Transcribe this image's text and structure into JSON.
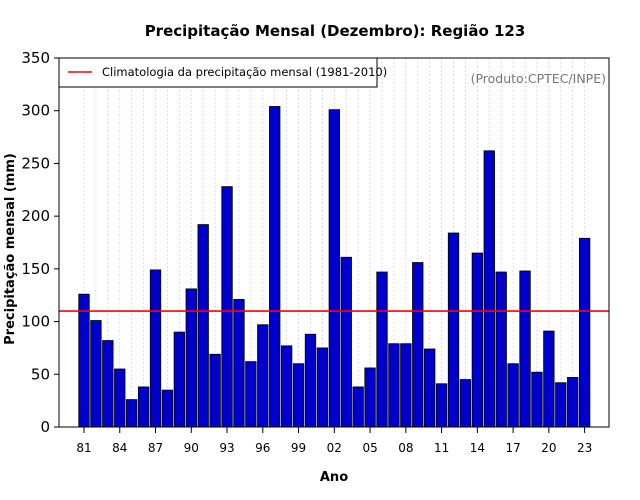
{
  "chart_data": {
    "type": "bar",
    "title": "Precipitação Mensal (Dezembro): Região 123",
    "xlabel": "Ano",
    "ylabel": "Precipitação mensal (mm)",
    "ylim": [
      0,
      350
    ],
    "yticks": [
      0,
      50,
      100,
      150,
      200,
      250,
      300,
      350
    ],
    "categories": [
      "81",
      "82",
      "83",
      "84",
      "85",
      "86",
      "87",
      "88",
      "89",
      "90",
      "91",
      "92",
      "93",
      "94",
      "95",
      "96",
      "97",
      "98",
      "99",
      "00",
      "01",
      "02",
      "03",
      "04",
      "05",
      "06",
      "07",
      "08",
      "09",
      "10",
      "11",
      "12",
      "13",
      "14",
      "15",
      "16",
      "17",
      "18",
      "19",
      "20",
      "21",
      "22",
      "23"
    ],
    "xtick_labels": [
      "81",
      "84",
      "87",
      "90",
      "93",
      "96",
      "99",
      "02",
      "05",
      "08",
      "11",
      "14",
      "17",
      "20",
      "23"
    ],
    "values": [
      126,
      101,
      82,
      55,
      26,
      38,
      149,
      35,
      90,
      131,
      192,
      69,
      228,
      121,
      62,
      97,
      304,
      77,
      60,
      88,
      75,
      301,
      161,
      38,
      56,
      147,
      79,
      79,
      156,
      74,
      41,
      184,
      45,
      165,
      262,
      147,
      60,
      148,
      52,
      91,
      42,
      47,
      179
    ],
    "bar_color": "#0000cc",
    "climatology": {
      "value": 110,
      "color": "#ff0000",
      "label": "Climatologia da precipitação mensal (1981-2010)"
    },
    "legend_position": "top-left",
    "grid": "vertical dotted",
    "source_note": "(Produto:CPTEC/INPE)"
  }
}
